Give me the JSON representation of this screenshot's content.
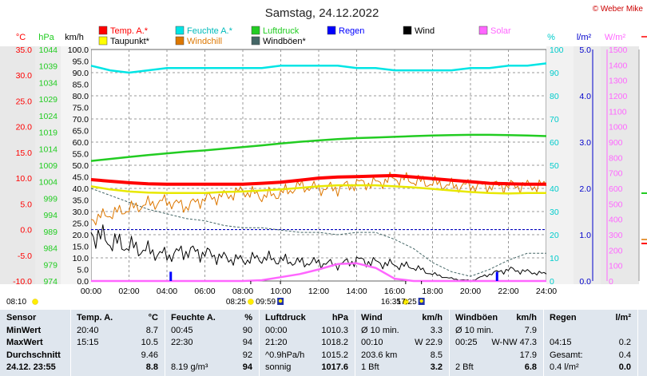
{
  "title": "Samstag, 24.12.2022",
  "credit": "© Weber Mike",
  "colors": {
    "temp": "#ff0000",
    "humidity": "#00e5e5",
    "pressure": "#22cc22",
    "rain": "#0000ff",
    "wind": "#000000",
    "solar": "#ff66ff",
    "dewpoint": "#ffff00",
    "windchill": "#dd7700",
    "gust": "#446666",
    "frost": "#0000bb"
  },
  "legend": [
    {
      "label": "Temp. A.*",
      "color": "#ff0000"
    },
    {
      "label": "Feuchte A.*",
      "color": "#00e5e5"
    },
    {
      "label": "Luftdruck",
      "color": "#22cc22"
    },
    {
      "label": "Regen",
      "color": "#0000ff"
    },
    {
      "label": "Wind",
      "color": "#000000"
    },
    {
      "label": "Solar",
      "color": "#ff66ff"
    },
    {
      "label": "Taupunkt*",
      "color": "#ffff00"
    },
    {
      "label": "Windchill",
      "color": "#dd7700"
    },
    {
      "label": "Windböen*",
      "color": "#446666"
    }
  ],
  "axes": {
    "temp": {
      "unit": "°C",
      "color": "#ff0000",
      "range": [
        -10,
        35
      ],
      "ticks": [
        "35.0",
        "30.0",
        "25.0",
        "20.0",
        "15.0",
        "10.0",
        "5.0",
        "0.0",
        "-5.0",
        "-10.0"
      ]
    },
    "pressure": {
      "unit": "hPa",
      "color": "#22cc22",
      "range": [
        974,
        1044
      ],
      "ticks": [
        "1044",
        "1039",
        "1034",
        "1029",
        "1024",
        "1019",
        "1014",
        "1009",
        "1004",
        "999",
        "994",
        "989",
        "984",
        "979",
        "974"
      ]
    },
    "wind": {
      "unit": "km/h",
      "color": "#000000",
      "range": [
        0,
        100
      ],
      "ticks": [
        "100.0",
        "95.0",
        "90.0",
        "85.0",
        "80.0",
        "75.0",
        "70.0",
        "65.0",
        "60.0",
        "55.0",
        "50.0",
        "45.0",
        "40.0",
        "35.0",
        "30.0",
        "25.0",
        "20.0",
        "15.0",
        "10.0",
        "5.0",
        "0.0"
      ]
    },
    "humidity": {
      "unit": "%",
      "color": "#00cccc",
      "range": [
        0,
        100
      ],
      "ticks": [
        "100",
        "90",
        "80",
        "70",
        "60",
        "50",
        "40",
        "30",
        "20",
        "10",
        "0"
      ]
    },
    "rain": {
      "unit": "l/m²",
      "color": "#0000cc",
      "range": [
        0,
        5
      ],
      "ticks": [
        "5.0",
        "4.0",
        "3.0",
        "2.0",
        "1.0",
        "0.0"
      ]
    },
    "solar": {
      "unit": "W/m²",
      "color": "#ff66ff",
      "range": [
        0,
        1500
      ],
      "ticks": [
        "1500",
        "1400",
        "1300",
        "1200",
        "1100",
        "1000",
        "900",
        "800",
        "700",
        "600",
        "500",
        "400",
        "300",
        "200",
        "100",
        "0"
      ]
    },
    "x": {
      "ticks": [
        "00:00",
        "02:00",
        "04:00",
        "06:00",
        "08:00",
        "10:00",
        "12:00",
        "14:00",
        "16:00",
        "18:00",
        "20:00",
        "22:00",
        "24:00"
      ]
    }
  },
  "events": [
    {
      "time": "08:10",
      "icon": "sun-icon"
    },
    {
      "time": "08:25",
      "icon": "sun-icon"
    },
    {
      "time": "09:59",
      "icon": "sunrise-icon"
    },
    {
      "time": "16:35",
      "icon": "sun-icon"
    },
    {
      "time": "17:25",
      "icon": "sunset-icon"
    }
  ],
  "chart_data": {
    "type": "line",
    "x_hours": [
      0,
      1,
      2,
      3,
      4,
      5,
      6,
      7,
      8,
      9,
      10,
      11,
      12,
      13,
      14,
      15,
      16,
      17,
      18,
      19,
      20,
      21,
      22,
      23,
      24
    ],
    "series": [
      {
        "name": "Temp. A.*",
        "axis": "temp",
        "values": [
          9.7,
          9.4,
          9.1,
          8.9,
          8.8,
          8.8,
          8.8,
          8.8,
          8.8,
          9.0,
          9.2,
          9.6,
          10.0,
          10.2,
          10.3,
          10.4,
          10.5,
          10.2,
          9.9,
          9.6,
          9.3,
          9.0,
          8.9,
          8.8,
          8.8
        ]
      },
      {
        "name": "Feuchte A.*",
        "axis": "humidity",
        "values": [
          93,
          91,
          90,
          91,
          92,
          92,
          92,
          92,
          92,
          92,
          93,
          93,
          93,
          93,
          92,
          92,
          91,
          91,
          91,
          91,
          92,
          92,
          93,
          93,
          94
        ]
      },
      {
        "name": "Luftdruck",
        "axis": "pressure",
        "values": [
          1010.3,
          1010.9,
          1011.5,
          1012.1,
          1012.6,
          1013.1,
          1013.5,
          1014.0,
          1014.5,
          1015.0,
          1015.6,
          1016.1,
          1016.5,
          1016.9,
          1017.2,
          1017.4,
          1017.6,
          1017.8,
          1018.0,
          1018.1,
          1018.2,
          1018.2,
          1018.1,
          1018.0,
          1017.8
        ]
      },
      {
        "name": "Taupunkt*",
        "axis": "temp",
        "values": [
          8.4,
          7.8,
          7.4,
          7.2,
          7.1,
          7.1,
          7.1,
          7.3,
          7.4,
          7.6,
          7.8,
          8.1,
          8.4,
          8.6,
          8.6,
          8.6,
          8.4,
          8.2,
          7.9,
          7.6,
          7.3,
          7.1,
          7.0,
          7.1,
          7.1
        ]
      },
      {
        "name": "Windchill",
        "axis": "temp",
        "values": [
          2.0,
          3.0,
          4.0,
          5.0,
          5.5,
          4.5,
          6.0,
          6.5,
          7.5,
          6.5,
          7.0,
          8.5,
          8.0,
          8.0,
          9.0,
          9.0,
          10.0,
          9.5,
          9.0,
          8.5,
          8.5,
          8.5,
          8.5,
          8.5,
          8.5
        ]
      },
      {
        "name": "Wind",
        "axis": "wind",
        "values": [
          21,
          17,
          15,
          13,
          11,
          13,
          12,
          10,
          9,
          10,
          9,
          8,
          8,
          7,
          9,
          8,
          7,
          6,
          3,
          1,
          0,
          3,
          5,
          4,
          3
        ]
      },
      {
        "name": "Windböen*",
        "axis": "wind",
        "values": [
          40,
          37,
          34,
          31,
          29,
          27,
          26,
          24,
          23,
          23,
          22,
          21,
          21,
          20,
          21,
          21,
          18,
          14,
          8,
          4,
          2,
          5,
          9,
          12,
          12
        ]
      },
      {
        "name": "Solar",
        "axis": "solar",
        "values": [
          0,
          0,
          0,
          0,
          0,
          0,
          0,
          0,
          0,
          5,
          25,
          45,
          75,
          110,
          115,
          85,
          15,
          0,
          0,
          0,
          0,
          0,
          0,
          0,
          0
        ]
      }
    ],
    "rain_bars": [
      {
        "hour": 4.2,
        "value": 0.2
      },
      {
        "hour": 21.4,
        "value": 0.2
      }
    ],
    "frost_line_celsius": 0
  },
  "stats": {
    "header": [
      "Sensor",
      "Temp. A.",
      "°C",
      "Feuchte A.",
      "%",
      "Luftdruck",
      "hPa",
      "Wind",
      "km/h",
      "Windböen",
      "km/h",
      "Regen",
      "l/m²"
    ],
    "rows": [
      [
        "MinWert",
        "20:40",
        "8.7",
        "00:45",
        "90",
        "00:00",
        "1010.3",
        "Ø 10 min.",
        "3.3",
        "Ø 10 min.",
        "7.9",
        "",
        ""
      ],
      [
        "MaxWert",
        "15:15",
        "10.5",
        "22:30",
        "94",
        "21:20",
        "1018.2",
        "00:10",
        "W 22.9",
        "00:25",
        "W-NW 47.3",
        "04:15",
        "0.2"
      ],
      [
        "Durchschnitt",
        "",
        "9.46",
        "",
        "92",
        "^0.9hPa/h",
        "1015.2",
        "203.6 km",
        "8.5",
        "",
        "17.9",
        "Gesamt:",
        "0.4"
      ],
      [
        "24.12. 23:55",
        "",
        "8.8",
        "8.19 g/m³",
        "94",
        "sonnig",
        "1017.6",
        "1 Bft",
        "3.2",
        "2 Bft",
        "6.8",
        "0.4 l/m²",
        "0.0"
      ]
    ]
  }
}
